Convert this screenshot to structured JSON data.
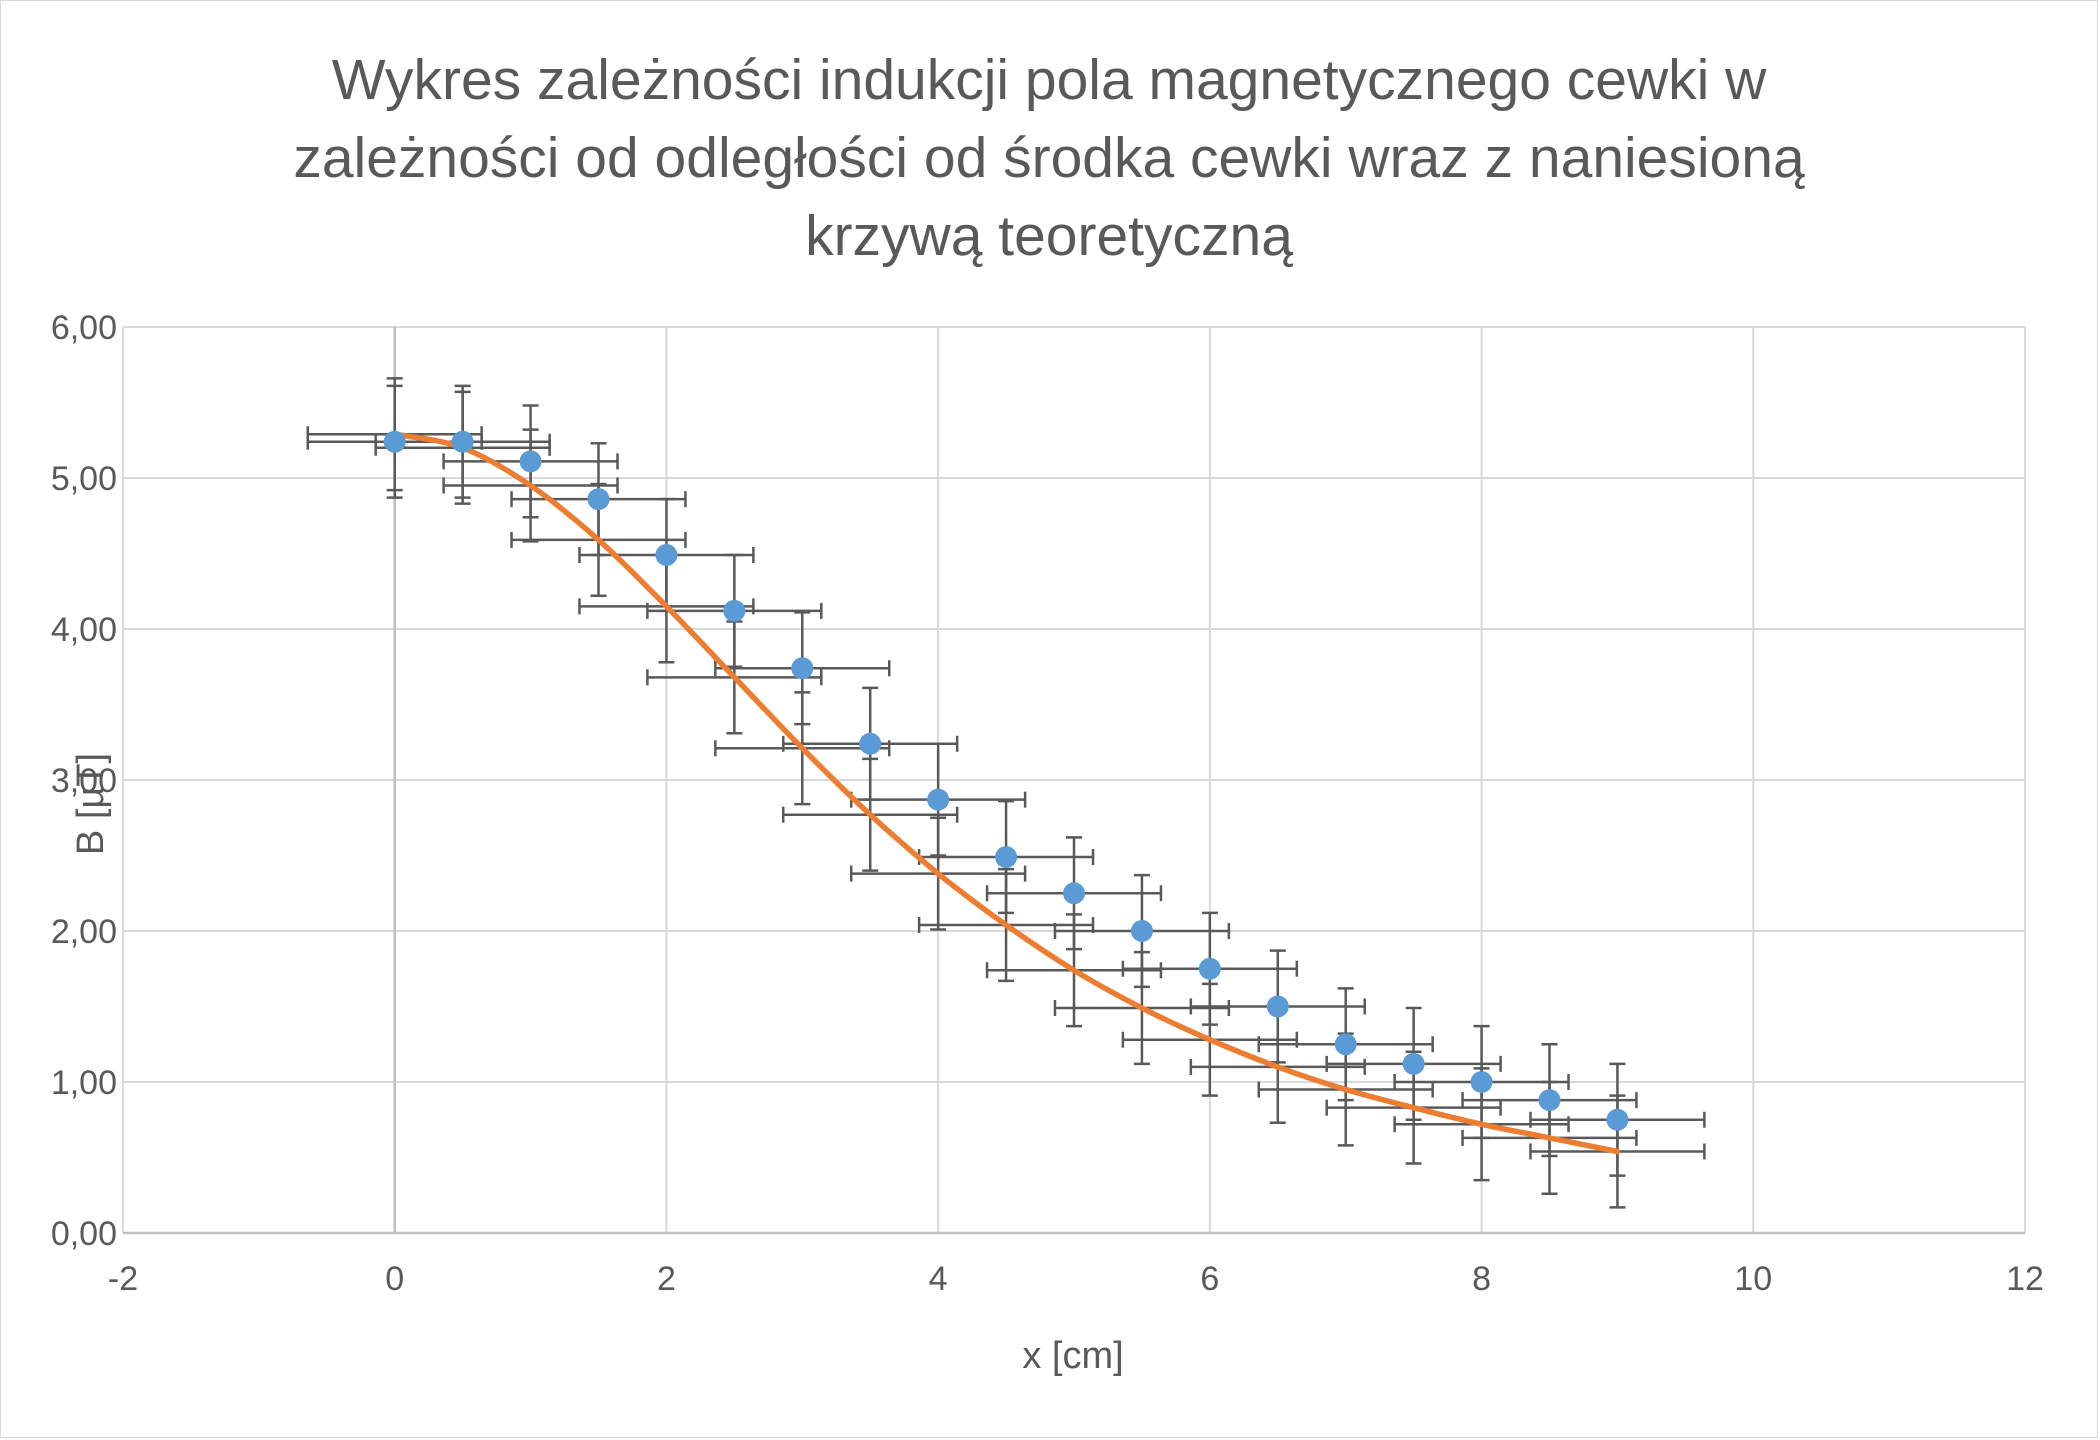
{
  "chart_data": {
    "type": "scatter",
    "title_lines": [
      "Wykres zależności indukcji pola magnetycznego cewki w",
      "zależności od odległości od środka cewki wraz z naniesioną",
      "krzywą teoretyczną"
    ],
    "xlabel": "x [cm]",
    "ylabel": "B [µT]",
    "xlim": [
      -2,
      12
    ],
    "ylim": [
      0,
      6
    ],
    "x_ticks": [
      -2,
      0,
      2,
      4,
      6,
      8,
      10,
      12
    ],
    "x_tick_labels": [
      "-2",
      "0",
      "2",
      "4",
      "6",
      "8",
      "10",
      "12"
    ],
    "y_ticks": [
      0,
      1,
      2,
      3,
      4,
      5,
      6
    ],
    "y_tick_labels": [
      "0,00",
      "1,00",
      "2,00",
      "3,00",
      "4,00",
      "5,00",
      "6,00"
    ],
    "grid": true,
    "legend": "none",
    "series": [
      {
        "type": "scatter",
        "color": "#5b9bd5",
        "x": [
          0,
          0.5,
          1,
          1.5,
          2,
          2.5,
          3,
          3.5,
          4,
          4.5,
          5,
          5.5,
          6,
          6.5,
          7,
          7.5,
          8,
          8.5,
          9
        ],
        "y": [
          5.24,
          5.24,
          5.11,
          4.86,
          4.49,
          4.12,
          3.74,
          3.24,
          2.87,
          2.49,
          2.25,
          2.0,
          1.75,
          1.5,
          1.25,
          1.12,
          1.0,
          0.88,
          0.75
        ],
        "x_error": 0.64,
        "y_error": 0.37,
        "error_bar_color": "#595959"
      },
      {
        "type": "line",
        "color": "#ed7d31",
        "x": [
          0,
          0.5,
          1,
          1.5,
          2,
          2.5,
          3,
          3.5,
          4,
          4.5,
          5,
          5.5,
          6,
          6.5,
          7,
          7.5,
          8,
          8.5,
          9
        ],
        "y": [
          5.29,
          5.2,
          4.95,
          4.59,
          4.15,
          3.68,
          3.21,
          2.77,
          2.38,
          2.04,
          1.74,
          1.49,
          1.28,
          1.1,
          0.95,
          0.83,
          0.72,
          0.63,
          0.54
        ],
        "x_error": 0.64,
        "y_error": 0.37,
        "error_bar_color": "#595959"
      }
    ]
  }
}
